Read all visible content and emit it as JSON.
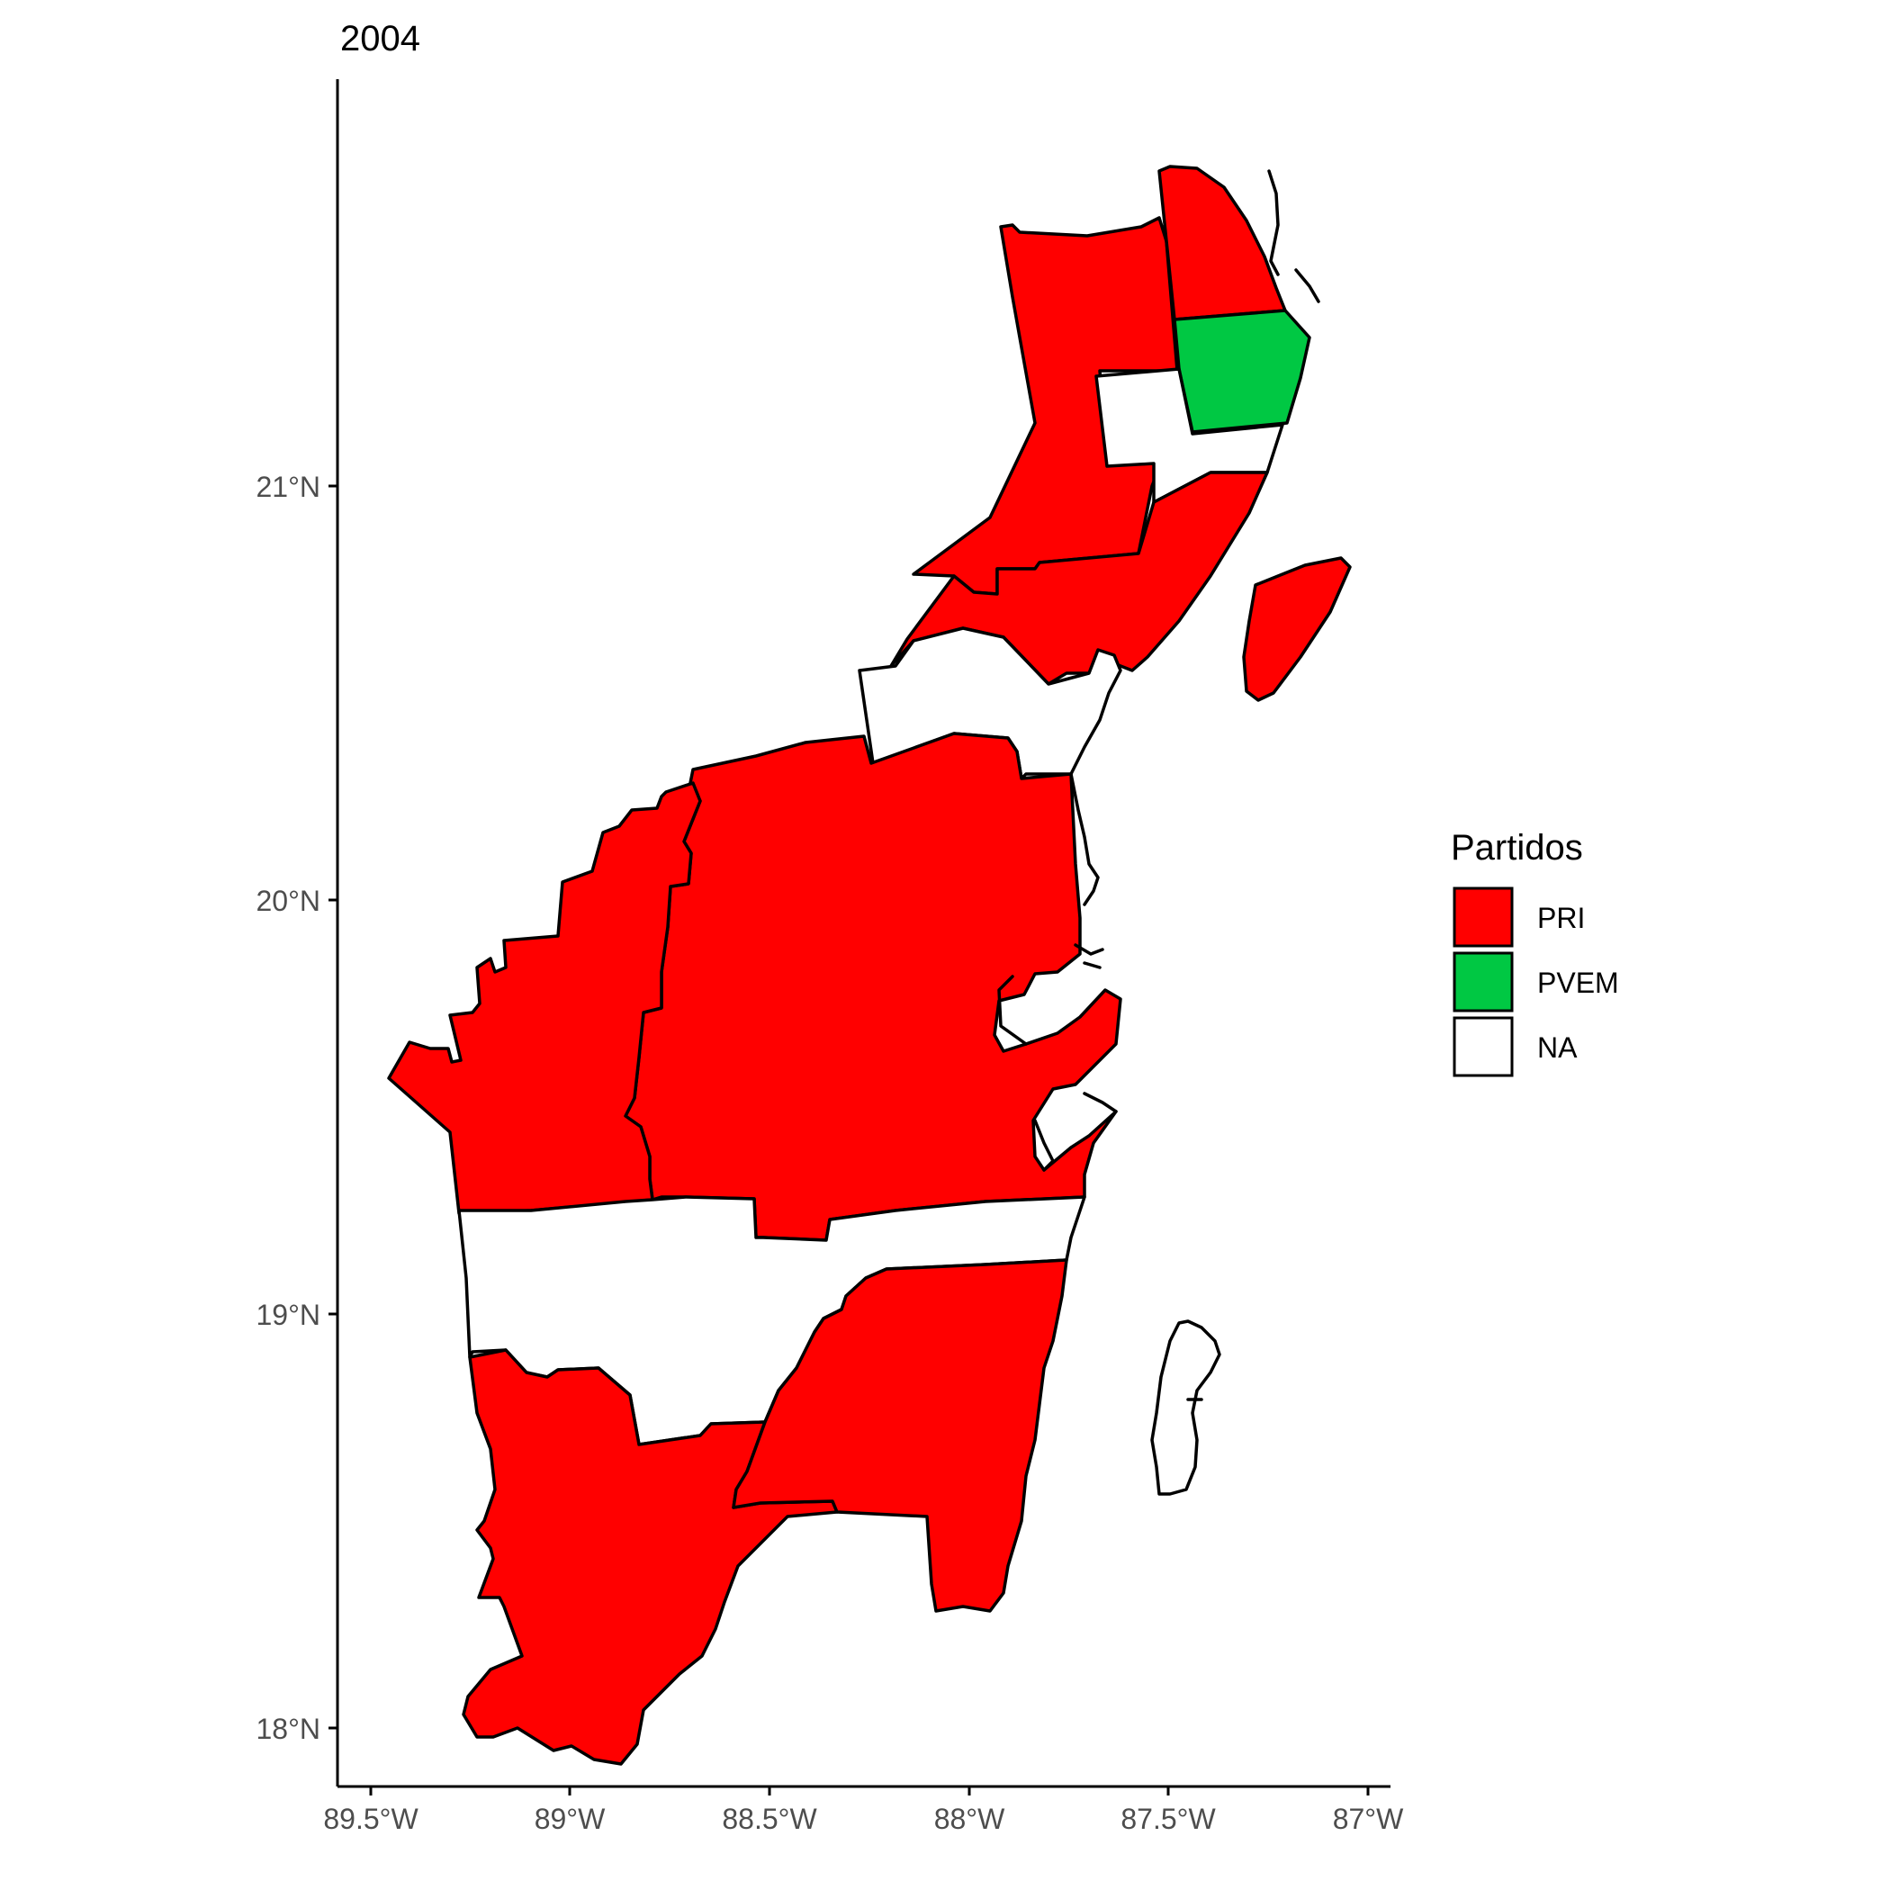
{
  "title": "2004",
  "axes": {
    "x_ticks": [
      "89.5°W",
      "89°W",
      "88.5°W",
      "88°W",
      "87.5°W",
      "87°W"
    ],
    "y_ticks": [
      "18°N",
      "19°N",
      "20°N",
      "21°N"
    ]
  },
  "legend": {
    "title": "Partidos",
    "items": [
      {
        "key": "PRI",
        "label": "PRI",
        "color": "#ff0000"
      },
      {
        "key": "PVEM",
        "label": "PVEM",
        "color": "#00c843"
      },
      {
        "key": "NA",
        "label": "NA",
        "color": "#ffffff"
      }
    ]
  },
  "colors": {
    "PRI": "#ff0000",
    "PVEM": "#00c843",
    "NA": "#ffffff",
    "outline": "#000000"
  },
  "regions": [
    {
      "id": "lazaro-cardenas",
      "party": "PRI"
    },
    {
      "id": "isla-mujeres",
      "party": "PRI"
    },
    {
      "id": "benito-juarez",
      "party": "PVEM"
    },
    {
      "id": "puerto-morelos-area",
      "party": "NA"
    },
    {
      "id": "solidaridad-north",
      "party": "PRI"
    },
    {
      "id": "cozumel",
      "party": "PRI"
    },
    {
      "id": "tulum-area",
      "party": "NA"
    },
    {
      "id": "felipe-carrillo-west",
      "party": "PRI"
    },
    {
      "id": "felipe-carrillo-east",
      "party": "PRI"
    },
    {
      "id": "central-band",
      "party": "NA"
    },
    {
      "id": "othon-p-blanco",
      "party": "PRI"
    },
    {
      "id": "bacalar-east",
      "party": "PRI"
    }
  ]
}
